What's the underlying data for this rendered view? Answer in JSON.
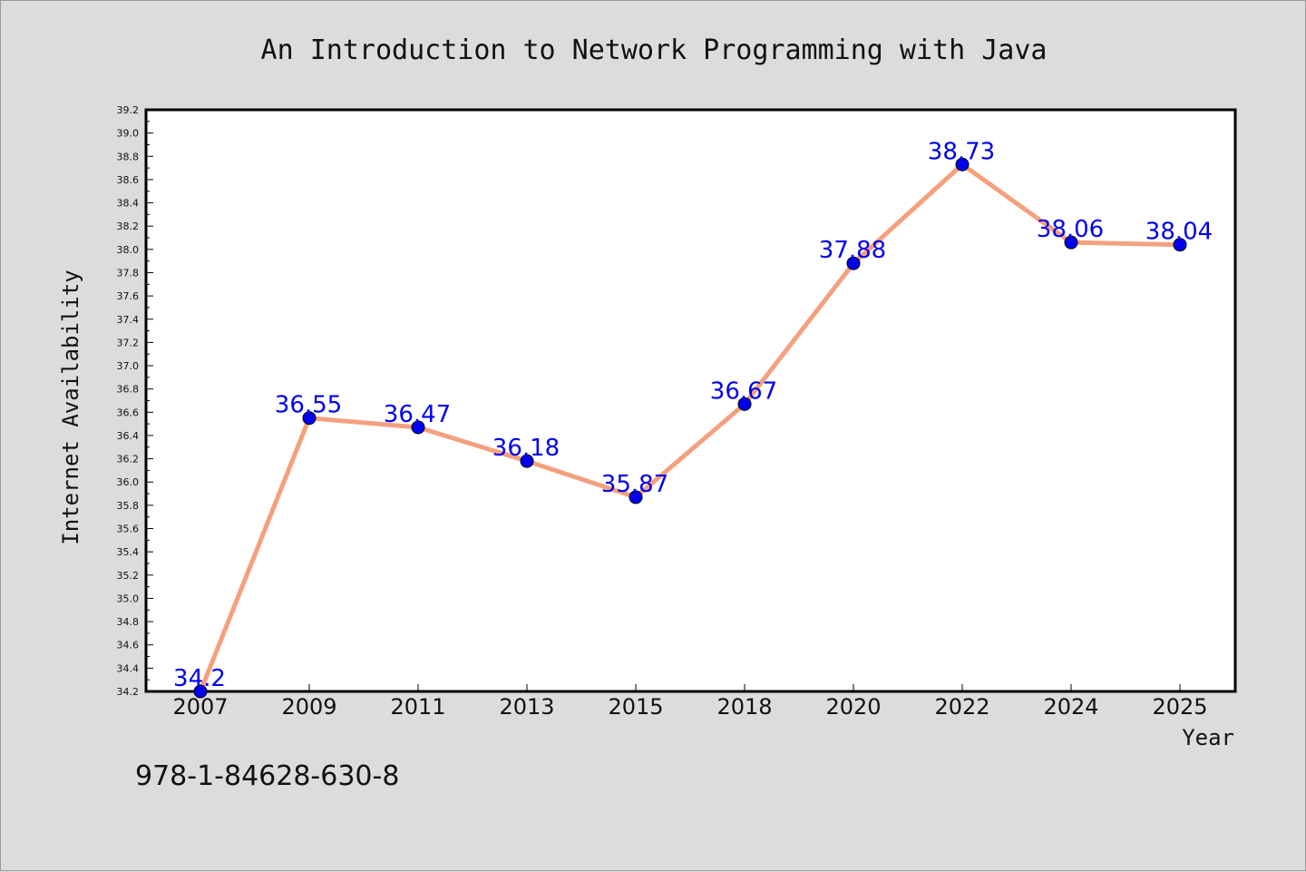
{
  "chart_data": {
    "type": "line",
    "title": "An Introduction to Network Programming with Java",
    "xlabel": "Year",
    "ylabel": "Internet Availability",
    "categories": [
      "2007",
      "2009",
      "2011",
      "2013",
      "2015",
      "2018",
      "2020",
      "2022",
      "2024",
      "2025"
    ],
    "values": [
      34.2,
      36.55,
      36.47,
      36.18,
      35.87,
      36.67,
      37.88,
      38.73,
      38.06,
      38.04
    ],
    "data_labels": [
      "34.2",
      "36.55",
      "36.47",
      "36.18",
      "35.87",
      "36.67",
      "37.88",
      "38.73",
      "38.06",
      "38.04"
    ],
    "ylim": [
      34.2,
      39.2
    ],
    "yticks": [
      "34.2",
      "34.4",
      "34.6",
      "34.8",
      "35.0",
      "35.2",
      "35.4",
      "35.6",
      "35.8",
      "36.0",
      "36.2",
      "36.4",
      "36.6",
      "36.8",
      "37.0",
      "37.2",
      "37.4",
      "37.6",
      "37.8",
      "38.0",
      "38.2",
      "38.4",
      "38.6",
      "38.8",
      "39.0",
      "39.2"
    ],
    "grid": false,
    "line_color": "#f4a07e",
    "marker_color": "#0000ee",
    "label_color": "#0000ee"
  },
  "footer": {
    "isbn": "978-1-84628-630-8"
  }
}
